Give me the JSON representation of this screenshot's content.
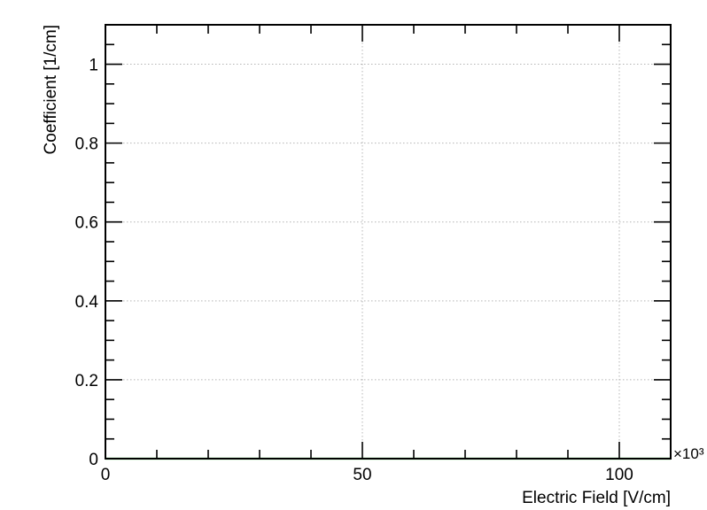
{
  "chart_data": {
    "type": "line",
    "title": "",
    "xlabel": "Electric Field [V/cm]",
    "ylabel": "Coefficient [1/cm]",
    "x_multiplier_label": "×10³",
    "xlim": [
      0,
      110
    ],
    "ylim": [
      0,
      1.1
    ],
    "grid": true,
    "x_ticks": [
      0,
      50,
      100
    ],
    "x_tick_labels": [
      "0",
      "50",
      "100"
    ],
    "y_ticks": [
      0,
      0.2,
      0.4,
      0.6,
      0.8,
      1
    ],
    "y_tick_labels": [
      "0",
      "0.2",
      "0.4",
      "0.6",
      "0.8",
      "1"
    ],
    "series": [
      {
        "color": "#22cc22",
        "x": [
          0,
          10,
          20,
          30,
          40,
          50,
          60,
          70,
          80,
          90,
          100,
          110
        ],
        "y": [
          0,
          0,
          0,
          0,
          0,
          0,
          0,
          0,
          0,
          0,
          0,
          0
        ]
      }
    ]
  },
  "colors": {
    "frame": "#000000",
    "grid": "#b4b4b4",
    "background": "#ffffff"
  }
}
